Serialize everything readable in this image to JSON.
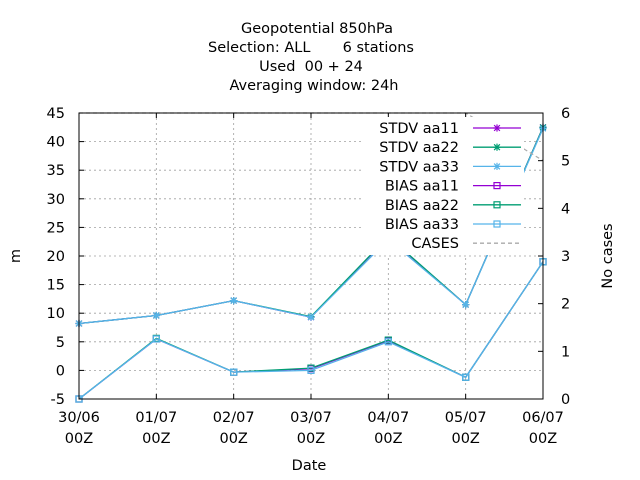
{
  "chart_data": {
    "type": "line",
    "title_lines": [
      "Geopotential 850hPa",
      "Selection: ALL       6 stations",
      "Used  00 + 24",
      "Averaging window: 24h"
    ],
    "xlabel": "Date",
    "ylabel": "m",
    "y2label": "No cases",
    "x_ticks": [
      {
        "top": "30/06",
        "bottom": "00Z"
      },
      {
        "top": "01/07",
        "bottom": "00Z"
      },
      {
        "top": "02/07",
        "bottom": "00Z"
      },
      {
        "top": "03/07",
        "bottom": "00Z"
      },
      {
        "top": "04/07",
        "bottom": "00Z"
      },
      {
        "top": "05/07",
        "bottom": "00Z"
      },
      {
        "top": "06/07",
        "bottom": "00Z"
      }
    ],
    "xlim": [
      0,
      6
    ],
    "ylim": [
      -5,
      45
    ],
    "y2lim": [
      0,
      6
    ],
    "y_ticks": [
      -5,
      0,
      5,
      10,
      15,
      20,
      25,
      30,
      35,
      40,
      45
    ],
    "y2_ticks": [
      0,
      1,
      2,
      3,
      4,
      5,
      6
    ],
    "grid": true,
    "legend_position": "top-right",
    "series": [
      {
        "name": "STDV aa11",
        "color": "#9400d3",
        "marker": "star",
        "axis": "y",
        "values": [
          8.2,
          9.6,
          12.2,
          9.3,
          23.3,
          11.5,
          42.5
        ]
      },
      {
        "name": "STDV aa22",
        "color": "#009e73",
        "marker": "star",
        "axis": "y",
        "values": [
          8.2,
          9.6,
          12.2,
          9.4,
          23.4,
          11.5,
          42.5
        ]
      },
      {
        "name": "STDV aa33",
        "color": "#56b4e9",
        "marker": "star",
        "axis": "y",
        "values": [
          8.2,
          9.6,
          12.2,
          9.3,
          22.9,
          11.5,
          42.3
        ]
      },
      {
        "name": "BIAS aa11",
        "color": "#9400d3",
        "marker": "square",
        "axis": "y",
        "values": [
          -5.0,
          5.5,
          -0.3,
          0.3,
          5.2,
          -1.2,
          19.0
        ]
      },
      {
        "name": "BIAS aa22",
        "color": "#009e73",
        "marker": "square",
        "axis": "y",
        "values": [
          -5.0,
          5.6,
          -0.3,
          0.4,
          5.3,
          -1.2,
          19.0
        ]
      },
      {
        "name": "BIAS aa33",
        "color": "#56b4e9",
        "marker": "square",
        "axis": "y",
        "values": [
          -5.0,
          5.5,
          -0.3,
          0.0,
          5.0,
          -1.2,
          19.0
        ]
      },
      {
        "name": "CASES",
        "color": "#aaaaaa",
        "marker": "none",
        "dashed": true,
        "axis": "y2",
        "values": [
          6,
          6,
          6,
          6,
          6,
          6,
          5
        ]
      }
    ]
  }
}
